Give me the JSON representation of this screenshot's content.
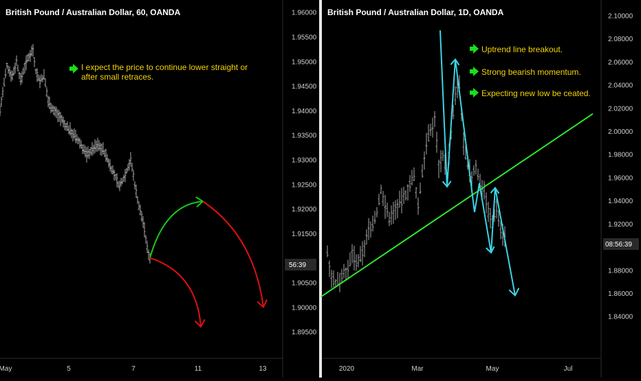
{
  "colors": {
    "background": "#000000",
    "candle": "#a8a8a8",
    "axis_text": "#d0d0d0",
    "annotation_text": "#f2d20a",
    "up_arrow": "#19c819",
    "down_arrow": "#e01010",
    "trendline": "#2ee62e",
    "projection": "#39d6e6",
    "bullet_arrow": "#19e019",
    "price_label_bg": "#2a2a2a"
  },
  "chart_data": [
    {
      "type": "candlestick",
      "title": "British Pound / Australian Dollar, 60, OANDA",
      "x_ticks": [
        "May",
        "5",
        "7",
        "11",
        "13"
      ],
      "y_ticks": [
        "1.96000",
        "1.95500",
        "1.95000",
        "1.94500",
        "1.94000",
        "1.93500",
        "1.93000",
        "1.92500",
        "1.92000",
        "1.91500",
        "1.90500",
        "1.90000",
        "1.89500"
      ],
      "ylim": [
        1.8925,
        1.9615
      ],
      "price_label": "56:39",
      "current_price": 1.9101,
      "annotation": [
        "I expect the price to continue lower straight or",
        "after small retraces."
      ],
      "price_path": [
        [
          0,
          1.94
        ],
        [
          5,
          1.9445
        ],
        [
          10,
          1.949
        ],
        [
          18,
          1.947
        ],
        [
          24,
          1.95
        ],
        [
          30,
          1.946
        ],
        [
          36,
          1.949
        ],
        [
          42,
          1.951
        ],
        [
          48,
          1.9525
        ],
        [
          52,
          1.948
        ],
        [
          58,
          1.946
        ],
        [
          64,
          1.947
        ],
        [
          70,
          1.942
        ],
        [
          78,
          1.94
        ],
        [
          86,
          1.939
        ],
        [
          94,
          1.937
        ],
        [
          102,
          1.936
        ],
        [
          110,
          1.9345
        ],
        [
          118,
          1.933
        ],
        [
          126,
          1.931
        ],
        [
          134,
          1.932
        ],
        [
          142,
          1.933
        ],
        [
          150,
          1.932
        ],
        [
          158,
          1.9295
        ],
        [
          166,
          1.927
        ],
        [
          174,
          1.9245
        ],
        [
          182,
          1.927
        ],
        [
          190,
          1.93
        ],
        [
          196,
          1.925
        ],
        [
          202,
          1.9205
        ],
        [
          208,
          1.9175
        ],
        [
          214,
          1.912
        ],
        [
          218,
          1.9101
        ]
      ],
      "scenarios": {
        "up": {
          "start": [
            218,
            1.91
          ],
          "end": [
            295,
            1.9215
          ]
        },
        "drop_after_up": {
          "start": [
            295,
            1.9215
          ],
          "end": [
            383,
            1.9
          ]
        },
        "down": {
          "start": [
            218,
            1.91
          ],
          "end": [
            292,
            1.896
          ]
        }
      }
    },
    {
      "type": "candlestick",
      "title": "British Pound / Australian Dollar, 1D, OANDA",
      "x_ticks": [
        "2020",
        "Mar",
        "May",
        "Jul"
      ],
      "y_ticks": [
        "2.10000",
        "2.08000",
        "2.06000",
        "2.04000",
        "2.02000",
        "2.00000",
        "1.98000",
        "1.96000",
        "1.94000",
        "1.92000",
        "1.90000",
        "1.88000",
        "1.86000",
        "1.84000"
      ],
      "ylim": [
        1.8262,
        2.1044
      ],
      "price_label": "08:56:39",
      "current_price": 1.908,
      "annotations": [
        "Uptrend line breakout.",
        "Strong bearish momentum.",
        "Expecting new low be ceated."
      ],
      "price_path": [
        [
          476,
          1.895
        ],
        [
          482,
          1.875
        ],
        [
          488,
          1.868
        ],
        [
          494,
          1.872
        ],
        [
          500,
          1.88
        ],
        [
          506,
          1.878
        ],
        [
          512,
          1.895
        ],
        [
          518,
          1.885
        ],
        [
          524,
          1.89
        ],
        [
          530,
          1.9
        ],
        [
          536,
          1.915
        ],
        [
          542,
          1.92
        ],
        [
          548,
          1.93
        ],
        [
          554,
          1.95
        ],
        [
          560,
          1.935
        ],
        [
          566,
          1.925
        ],
        [
          572,
          1.93
        ],
        [
          578,
          1.935
        ],
        [
          584,
          1.94
        ],
        [
          590,
          1.945
        ],
        [
          596,
          1.955
        ],
        [
          602,
          1.96
        ],
        [
          608,
          1.935
        ],
        [
          614,
          1.965
        ],
        [
          620,
          1.99
        ],
        [
          626,
          2.0
        ],
        [
          632,
          2.01
        ],
        [
          638,
          1.97
        ],
        [
          644,
          1.98
        ],
        [
          650,
          1.96
        ],
        [
          656,
          2.0
        ],
        [
          662,
          2.03
        ],
        [
          668,
          2.04
        ],
        [
          674,
          1.99
        ],
        [
          680,
          1.97
        ],
        [
          686,
          1.96
        ],
        [
          692,
          1.97
        ],
        [
          698,
          1.955
        ],
        [
          704,
          1.95
        ],
        [
          710,
          1.93
        ],
        [
          716,
          1.92
        ],
        [
          722,
          1.935
        ],
        [
          728,
          1.915
        ],
        [
          734,
          1.908
        ]
      ],
      "trendline": {
        "start": [
          467,
          1.857
        ],
        "end": [
          862,
          2.015
        ]
      },
      "projection_path": [
        [
          640,
          2.087
        ],
        [
          650,
          1.952
        ],
        [
          662,
          2.062
        ],
        [
          690,
          1.93
        ],
        [
          697,
          1.955
        ],
        [
          714,
          1.895
        ],
        [
          720,
          1.951
        ],
        [
          749,
          1.858
        ]
      ]
    }
  ]
}
